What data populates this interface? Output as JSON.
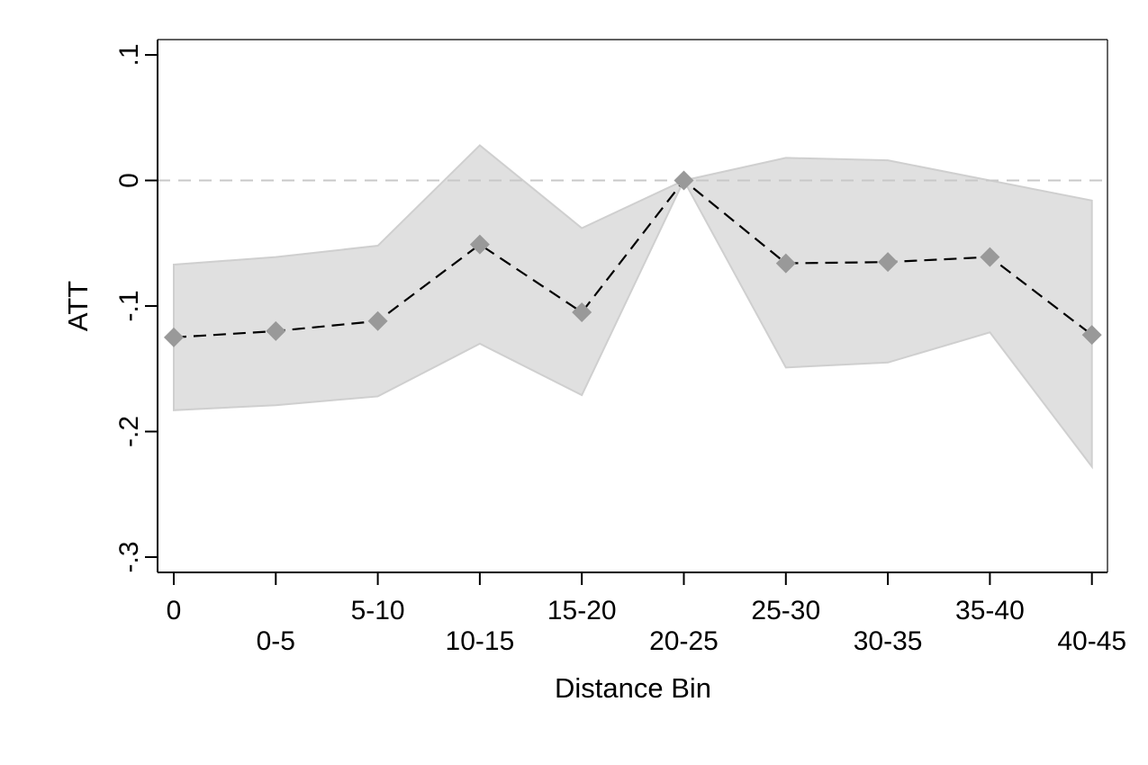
{
  "chart_data": {
    "type": "line",
    "xlabel": "Distance Bin",
    "ylabel": "ATT",
    "categories": [
      "0",
      "0-5",
      "5-10",
      "10-15",
      "15-20",
      "20-25",
      "25-30",
      "30-35",
      "35-40",
      "40-45"
    ],
    "ylim": [
      -0.3,
      0.1
    ],
    "yticks": [
      {
        "value": 0.1,
        "label": ".1"
      },
      {
        "value": 0,
        "label": "0"
      },
      {
        "value": -0.1,
        "label": "-.1"
      },
      {
        "value": -0.2,
        "label": "-.2"
      },
      {
        "value": -0.3,
        "label": "-.3"
      }
    ],
    "reference_line": {
      "y": 0,
      "style": "dashed",
      "color": "#c8c8c8"
    },
    "series": [
      {
        "values": [
          -0.125,
          -0.12,
          -0.112,
          -0.051,
          -0.105,
          0.0,
          -0.066,
          -0.065,
          -0.061,
          -0.123
        ],
        "marker": "diamond",
        "marker_color": "#999999",
        "line_style": "dashed",
        "line_color": "#000000"
      }
    ],
    "confidence_band": {
      "upper": [
        -0.067,
        -0.061,
        -0.052,
        0.028,
        -0.038,
        0.0,
        0.018,
        0.016,
        0.0,
        -0.016
      ],
      "lower": [
        -0.183,
        -0.179,
        -0.172,
        -0.13,
        -0.171,
        0.0,
        -0.149,
        -0.145,
        -0.121,
        -0.228
      ],
      "color": "#e0e0e0",
      "edge_color": "#cfcfcf"
    },
    "grid": false,
    "legend": "none"
  }
}
